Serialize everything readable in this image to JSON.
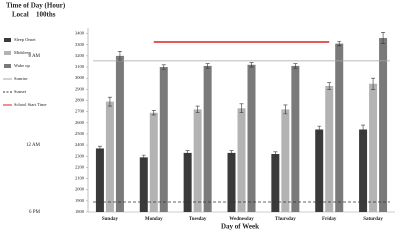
{
  "chart_data": {
    "type": "bar",
    "title": "Time of Day (Hour)",
    "ylabel_local": "Local",
    "ylabel_100ths": "100ths",
    "xlabel": "Day of Week",
    "categories": [
      "Sunday",
      "Monday",
      "Tuesday",
      "Wednesday",
      "Thursday",
      "Friday",
      "Saturday"
    ],
    "series": [
      {
        "name": "Sleep Onset",
        "color": "#3a3a3a",
        "values": [
          2370,
          2290,
          2330,
          2330,
          2320,
          2540,
          2540
        ],
        "errors": [
          20,
          20,
          20,
          20,
          20,
          30,
          40
        ]
      },
      {
        "name": "Midsleep",
        "color": "#b3b3b3",
        "values": [
          2790,
          2690,
          2720,
          2730,
          2720,
          2930,
          2950
        ],
        "errors": [
          40,
          20,
          30,
          40,
          40,
          30,
          50
        ]
      },
      {
        "name": "Wake up",
        "color": "#7a7a7a",
        "values": [
          3200,
          3100,
          3110,
          3120,
          3110,
          3310,
          3360
        ],
        "errors": [
          40,
          20,
          20,
          20,
          20,
          20,
          50
        ]
      }
    ],
    "reference_lines": [
      {
        "name": "Sunrise",
        "color": "#a6a6a6",
        "style": "solid",
        "value": 3155,
        "span": [
          "Sunday",
          "Saturday"
        ]
      },
      {
        "name": "Sunset",
        "color": "#333333",
        "style": "dashed",
        "value": 1890,
        "span": [
          "Sunday",
          "Saturday"
        ]
      },
      {
        "name": "School Start Time",
        "color": "#e02020",
        "style": "solid",
        "value": 3325,
        "span": [
          "Monday",
          "Friday"
        ]
      }
    ],
    "ylim": [
      1800,
      3450
    ],
    "yticks": [
      1800,
      1900,
      2000,
      2100,
      2200,
      2300,
      2400,
      2500,
      2600,
      2700,
      2800,
      2900,
      3000,
      3100,
      3200,
      3300,
      3400
    ],
    "y_local_ticks": [
      {
        "value": 3200,
        "label": "8 AM"
      },
      {
        "value": 2400,
        "label": "12 AM"
      },
      {
        "value": 1800,
        "label": "6 PM"
      }
    ]
  }
}
